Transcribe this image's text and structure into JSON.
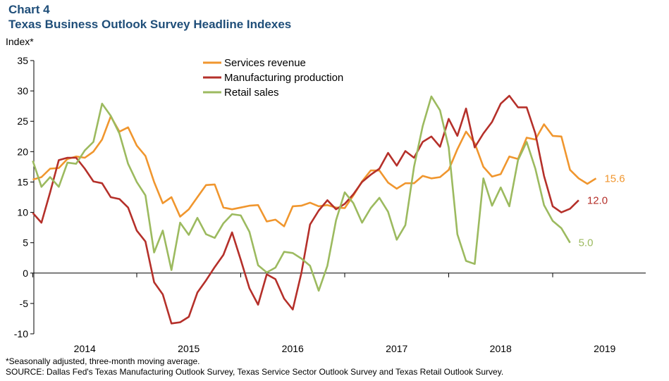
{
  "header": {
    "chart_label": "Chart 4",
    "title": "Texas Business Outlook Survey Headline Indexes"
  },
  "footnotes": {
    "note": "*Seasonally adjusted, three-month moving average.",
    "source": "SOURCE: Dallas Fed's Texas Manufacturing Outlook Survey, Texas Service Sector Outlook Survey and Texas Retail Outlook Survey."
  },
  "chart_data": {
    "type": "line",
    "title": "Texas Business Outlook Survey Headline Indexes",
    "ylabel": "Index*",
    "xlabel": "",
    "ylim": [
      -10,
      35
    ],
    "yticks": [
      -10,
      -5,
      0,
      5,
      10,
      15,
      20,
      25,
      30,
      35
    ],
    "x_start": "2013-07",
    "x_tick_labels": [
      "2014",
      "2015",
      "2016",
      "2017",
      "2018",
      "2019"
    ],
    "grid": false,
    "legend_position": "top-center",
    "series": [
      {
        "name": "Services revenue",
        "color": "#f0962e",
        "end_label": "15.6",
        "values": [
          15.4,
          15.8,
          17.2,
          17.3,
          18.8,
          19.2,
          19.0,
          20.0,
          22.0,
          25.8,
          23.3,
          24.0,
          21.0,
          19.3,
          15.0,
          11.5,
          12.5,
          9.3,
          10.5,
          12.5,
          14.5,
          14.6,
          10.8,
          10.5,
          10.8,
          11.1,
          11.2,
          8.5,
          8.8,
          7.7,
          11.0,
          11.1,
          11.6,
          11.0,
          11.2,
          10.8,
          10.7,
          12.8,
          15.1,
          16.9,
          16.9,
          14.9,
          13.9,
          14.8,
          14.8,
          16.0,
          15.6,
          15.8,
          17.0,
          20.4,
          23.3,
          21.4,
          17.5,
          15.9,
          16.3,
          19.2,
          18.8,
          22.3,
          22.0,
          24.5,
          22.6,
          22.5,
          17.0,
          15.6,
          14.7,
          15.6
        ]
      },
      {
        "name": "Manufacturing production",
        "color": "#b5302a",
        "end_label": "12.0",
        "values": [
          9.9,
          8.3,
          13.3,
          18.6,
          19.0,
          19.0,
          17.2,
          15.1,
          14.8,
          12.5,
          12.2,
          10.8,
          7.0,
          5.2,
          -1.5,
          -3.5,
          -8.3,
          -8.1,
          -7.2,
          -3.2,
          -1.2,
          1.0,
          3.0,
          6.7,
          2.2,
          -2.5,
          -5.2,
          -0.2,
          -1.0,
          -4.2,
          -6.0,
          0.0,
          8.0,
          10.3,
          12.0,
          10.5,
          11.4,
          13.0,
          15.0,
          16.2,
          17.2,
          19.8,
          17.7,
          20.1,
          19.0,
          21.6,
          22.5,
          20.8,
          25.4,
          22.6,
          27.1,
          20.7,
          23.0,
          24.9,
          27.9,
          29.2,
          27.3,
          27.3,
          23.0,
          16.0,
          11.0,
          10.0,
          10.6,
          12.0
        ]
      },
      {
        "name": "Retail sales",
        "color": "#9cba5f",
        "end_label": "5.0",
        "values": [
          18.5,
          14.2,
          15.8,
          14.2,
          18.2,
          18.0,
          20.2,
          21.6,
          27.9,
          25.9,
          23.0,
          18.0,
          15.0,
          12.8,
          3.4,
          7.0,
          0.5,
          8.3,
          6.3,
          9.1,
          6.4,
          5.8,
          8.2,
          9.7,
          9.5,
          6.8,
          1.3,
          0.1,
          0.9,
          3.5,
          3.3,
          2.4,
          1.2,
          -2.9,
          1.2,
          8.7,
          13.3,
          11.5,
          8.3,
          10.7,
          12.4,
          10.1,
          5.5,
          7.9,
          17.5,
          24.2,
          29.1,
          26.8,
          20.7,
          6.4,
          2.0,
          1.5,
          15.6,
          11.1,
          14.1,
          11.0,
          18.6,
          21.6,
          17.2,
          11.2,
          8.6,
          7.4,
          5.0
        ]
      }
    ]
  }
}
